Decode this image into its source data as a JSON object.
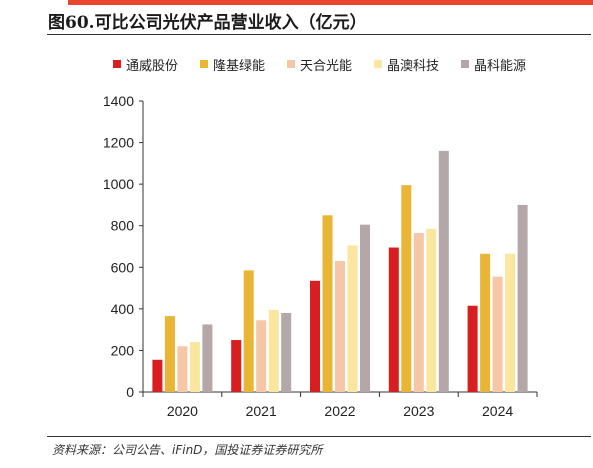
{
  "title": "图60.可比公司光伏产品营业收入（亿元）",
  "source": "资料来源：公司公告、iFinD，国投证券证券研究所",
  "chart_data": {
    "type": "bar",
    "categories": [
      "2020",
      "2021",
      "2022",
      "2023",
      "2024"
    ],
    "series": [
      {
        "name": "通威股份",
        "color": "#d81e1e",
        "values": [
          155,
          250,
          535,
          695,
          415
        ]
      },
      {
        "name": "隆基绿能",
        "color": "#e8b534",
        "values": [
          365,
          585,
          850,
          995,
          665
        ]
      },
      {
        "name": "天合光能",
        "color": "#f6c7a6",
        "values": [
          220,
          345,
          630,
          765,
          555
        ]
      },
      {
        "name": "晶澳科技",
        "color": "#fbe6a0",
        "values": [
          240,
          395,
          705,
          785,
          665
        ]
      },
      {
        "name": "晶科能源",
        "color": "#b3a7a7",
        "values": [
          325,
          380,
          805,
          1160,
          900
        ]
      }
    ],
    "ylim": [
      0,
      1400
    ],
    "yticks": [
      0,
      200,
      400,
      600,
      800,
      1000,
      1200,
      1400
    ],
    "grid": false,
    "legend_position": "top-center"
  }
}
